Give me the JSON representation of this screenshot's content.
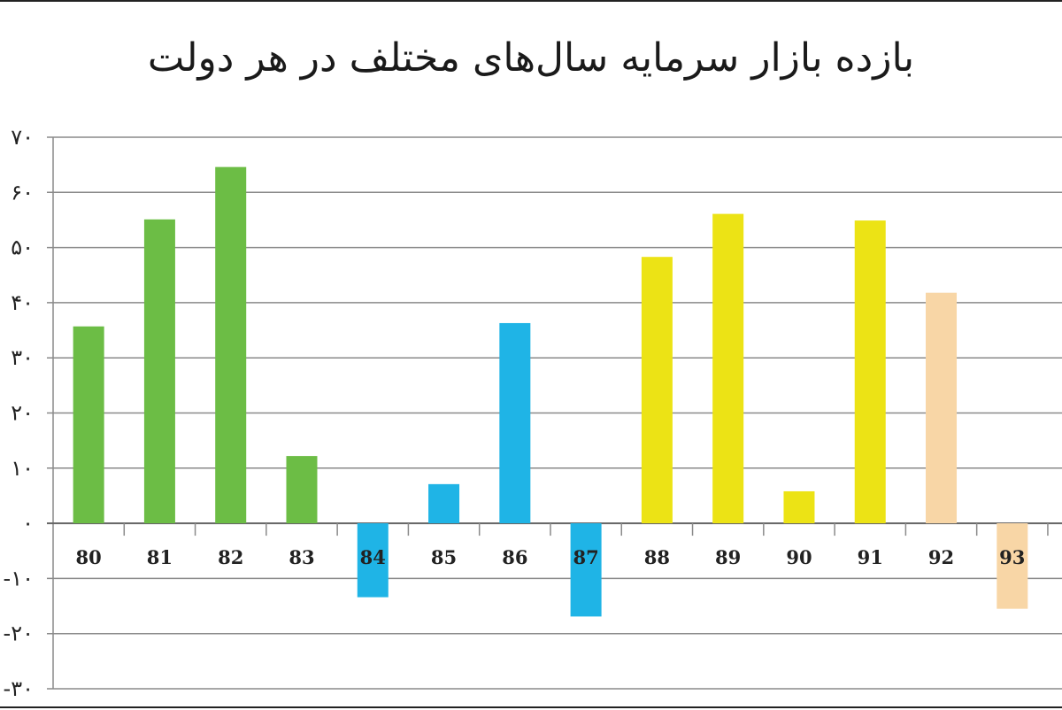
{
  "chart_data": {
    "type": "bar",
    "title": "بازده بازار سرمایه سال‌های مختلف در هر دولت",
    "xlabel": "",
    "ylabel": "",
    "ylim": [
      -30,
      70
    ],
    "y_ticks": [
      70,
      60,
      50,
      40,
      30,
      20,
      10,
      0,
      -10,
      -20,
      -30
    ],
    "y_tick_labels": [
      "۷۰",
      "۶۰",
      "۵۰",
      "۴۰",
      "۳۰",
      "۲۰",
      "۱۰",
      "۰",
      "-۱۰",
      "-۲۰",
      "-۳۰"
    ],
    "grid": true,
    "categories": [
      "80",
      "81",
      "82",
      "83",
      "84",
      "85",
      "86",
      "87",
      "88",
      "89",
      "90",
      "91",
      "92",
      "93"
    ],
    "values": [
      35.7,
      55.1,
      64.6,
      12.2,
      -13.4,
      7.1,
      36.3,
      -16.9,
      48.3,
      56.1,
      5.8,
      54.9,
      41.8,
      -15.5
    ],
    "bar_colors": [
      "#6cbd45",
      "#6cbd45",
      "#6cbd45",
      "#6cbd45",
      "#1fb4e6",
      "#1fb4e6",
      "#1fb4e6",
      "#1fb4e6",
      "#ece315",
      "#ece315",
      "#ece315",
      "#ece315",
      "#f8d6a6",
      "#f8d6a6"
    ]
  }
}
